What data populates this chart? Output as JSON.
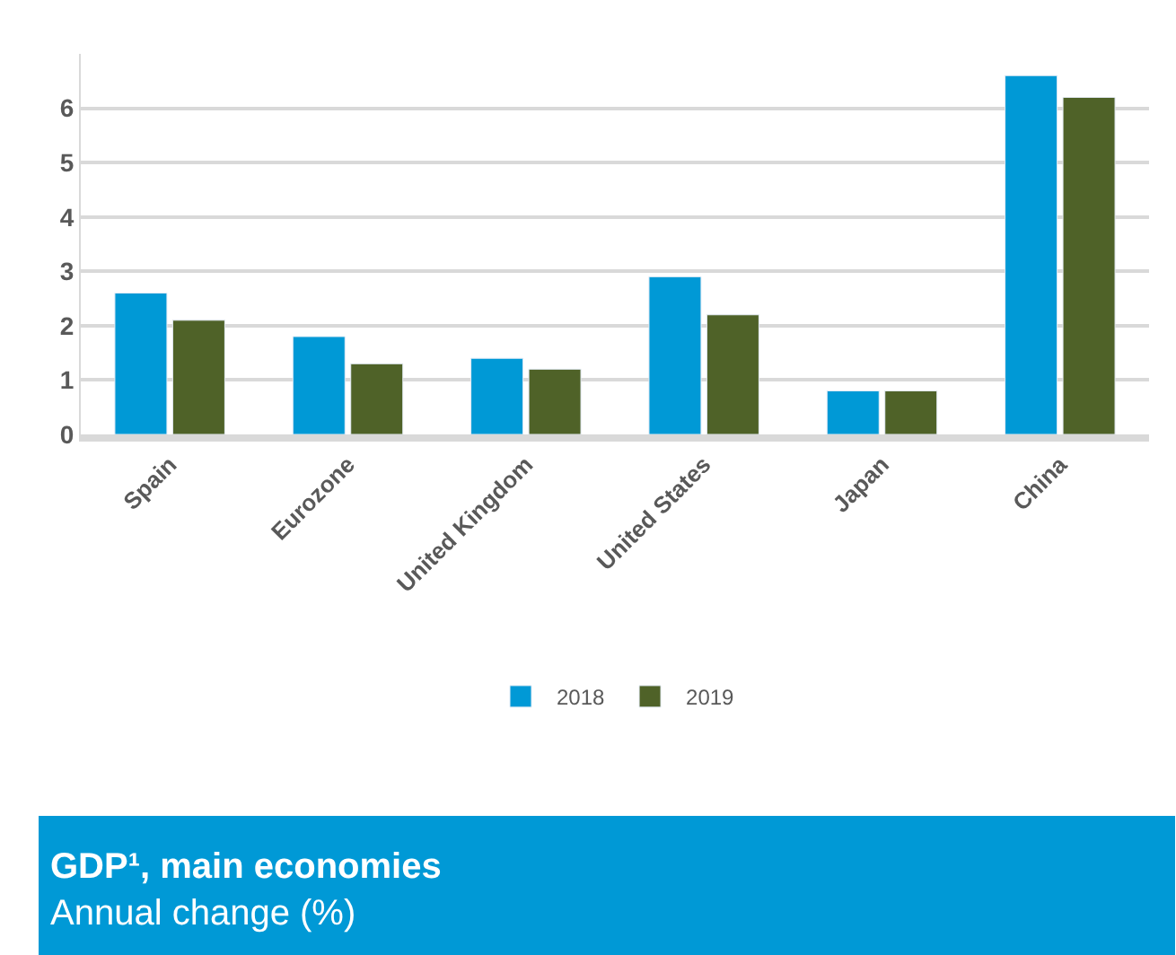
{
  "chart_data": {
    "type": "bar",
    "title": "GDP¹, main economies",
    "subtitle": "Annual change (%)",
    "categories": [
      "Spain",
      "Eurozone",
      "United Kingdom",
      "United States",
      "Japan",
      "China"
    ],
    "series": [
      {
        "name": "2018",
        "color": "#0099d6",
        "values": [
          2.6,
          1.8,
          1.4,
          2.9,
          0.8,
          6.6
        ]
      },
      {
        "name": "2019",
        "color": "#4f6228",
        "values": [
          2.1,
          1.3,
          1.2,
          2.2,
          0.8,
          6.2
        ]
      }
    ],
    "ylim": [
      0,
      7
    ],
    "yticks": [
      0,
      1,
      2,
      3,
      4,
      5,
      6
    ],
    "grid": "y",
    "legend": "bottom"
  }
}
